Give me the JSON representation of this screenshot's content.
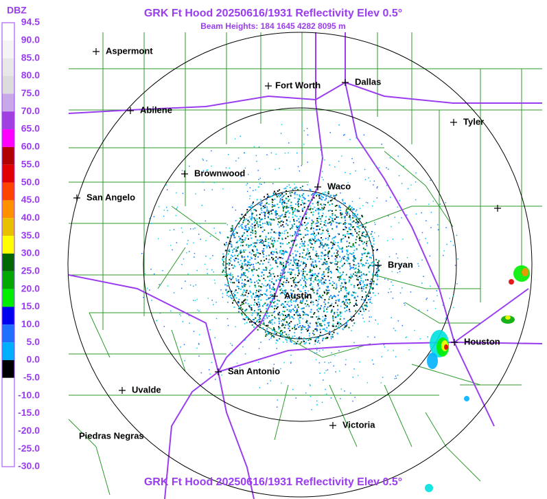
{
  "header": {
    "title": "GRK Ft Hood 20250616/1931 Reflectivity Elev 0.5°",
    "subtitle": "Beam Heights: 184 1645 4282 8095 m",
    "footer": "GRK Ft Hood 20250616/1931 Reflectivity Elev 0.5°"
  },
  "legend": {
    "unit": "DBZ",
    "labels": [
      "94.5",
      "90.0",
      "85.0",
      "80.0",
      "75.0",
      "70.0",
      "65.0",
      "60.0",
      "55.0",
      "50.0",
      "45.0",
      "40.0",
      "35.0",
      "30.0",
      "25.0",
      "20.0",
      "15.0",
      "10.0",
      "5.0",
      "0.0",
      "-5.0",
      "-10.0",
      "-15.0",
      "-20.0",
      "-25.0",
      "-30.0"
    ]
  },
  "cities": [
    "Aspermont",
    "Fort Worth",
    "Dallas",
    "Abilene",
    "Tyler",
    "Brownwood",
    "Waco",
    "San Angelo",
    "Bryan",
    "Austin",
    "Houston",
    "San Antonio",
    "Uvalde",
    "Victoria",
    "Piedras Negras"
  ]
}
